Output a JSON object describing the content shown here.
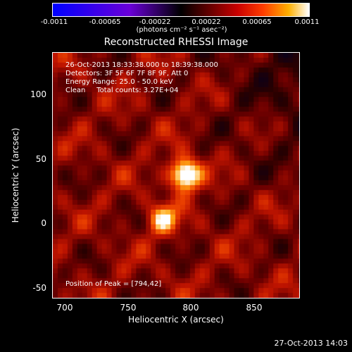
{
  "colorbar": {
    "ticks": [
      "-0.0011",
      "-0.00065",
      "-0.00022",
      "0.00022",
      "0.00065",
      "0.0011"
    ],
    "unit": "(photons cm⁻² s⁻¹ asec⁻²)"
  },
  "info": {
    "time": "26-Oct-2013 18:33:38.000 to 18:39:38.000",
    "detectors": "Detectors: 3F 5F 6F 7F 8F 9F, Att 0",
    "energy": "Energy Range: 25.0 - 50.0 keV",
    "clean": "Clean     Total counts: 3.27E+04",
    "peak": "Position of Peak = [794,42]"
  },
  "footer": {
    "timestamp": "27-Oct-2013 14:03"
  },
  "colors": {
    "background": "#000000",
    "hot": "#ffffff",
    "warm": "#ff4000",
    "cold": "#0000ff"
  },
  "chart_data": {
    "type": "heatmap",
    "title": "Reconstructed RHESSI Image",
    "xlabel": "Heliocentric X (arcsec)",
    "ylabel": "Heliocentric Y (arcsec)",
    "xlim": [
      688,
      886
    ],
    "ylim": [
      -57,
      140
    ],
    "xticks": [
      "700",
      "750",
      "800",
      "850"
    ],
    "yticks": [
      "100",
      "50",
      "0",
      "-50"
    ],
    "sources": [
      {
        "x": 794,
        "y": 42,
        "intensity": 1.0
      },
      {
        "x": 776,
        "y": 6,
        "intensity": 0.55
      }
    ],
    "colorbar_range": [
      -0.0011,
      0.0011
    ]
  }
}
